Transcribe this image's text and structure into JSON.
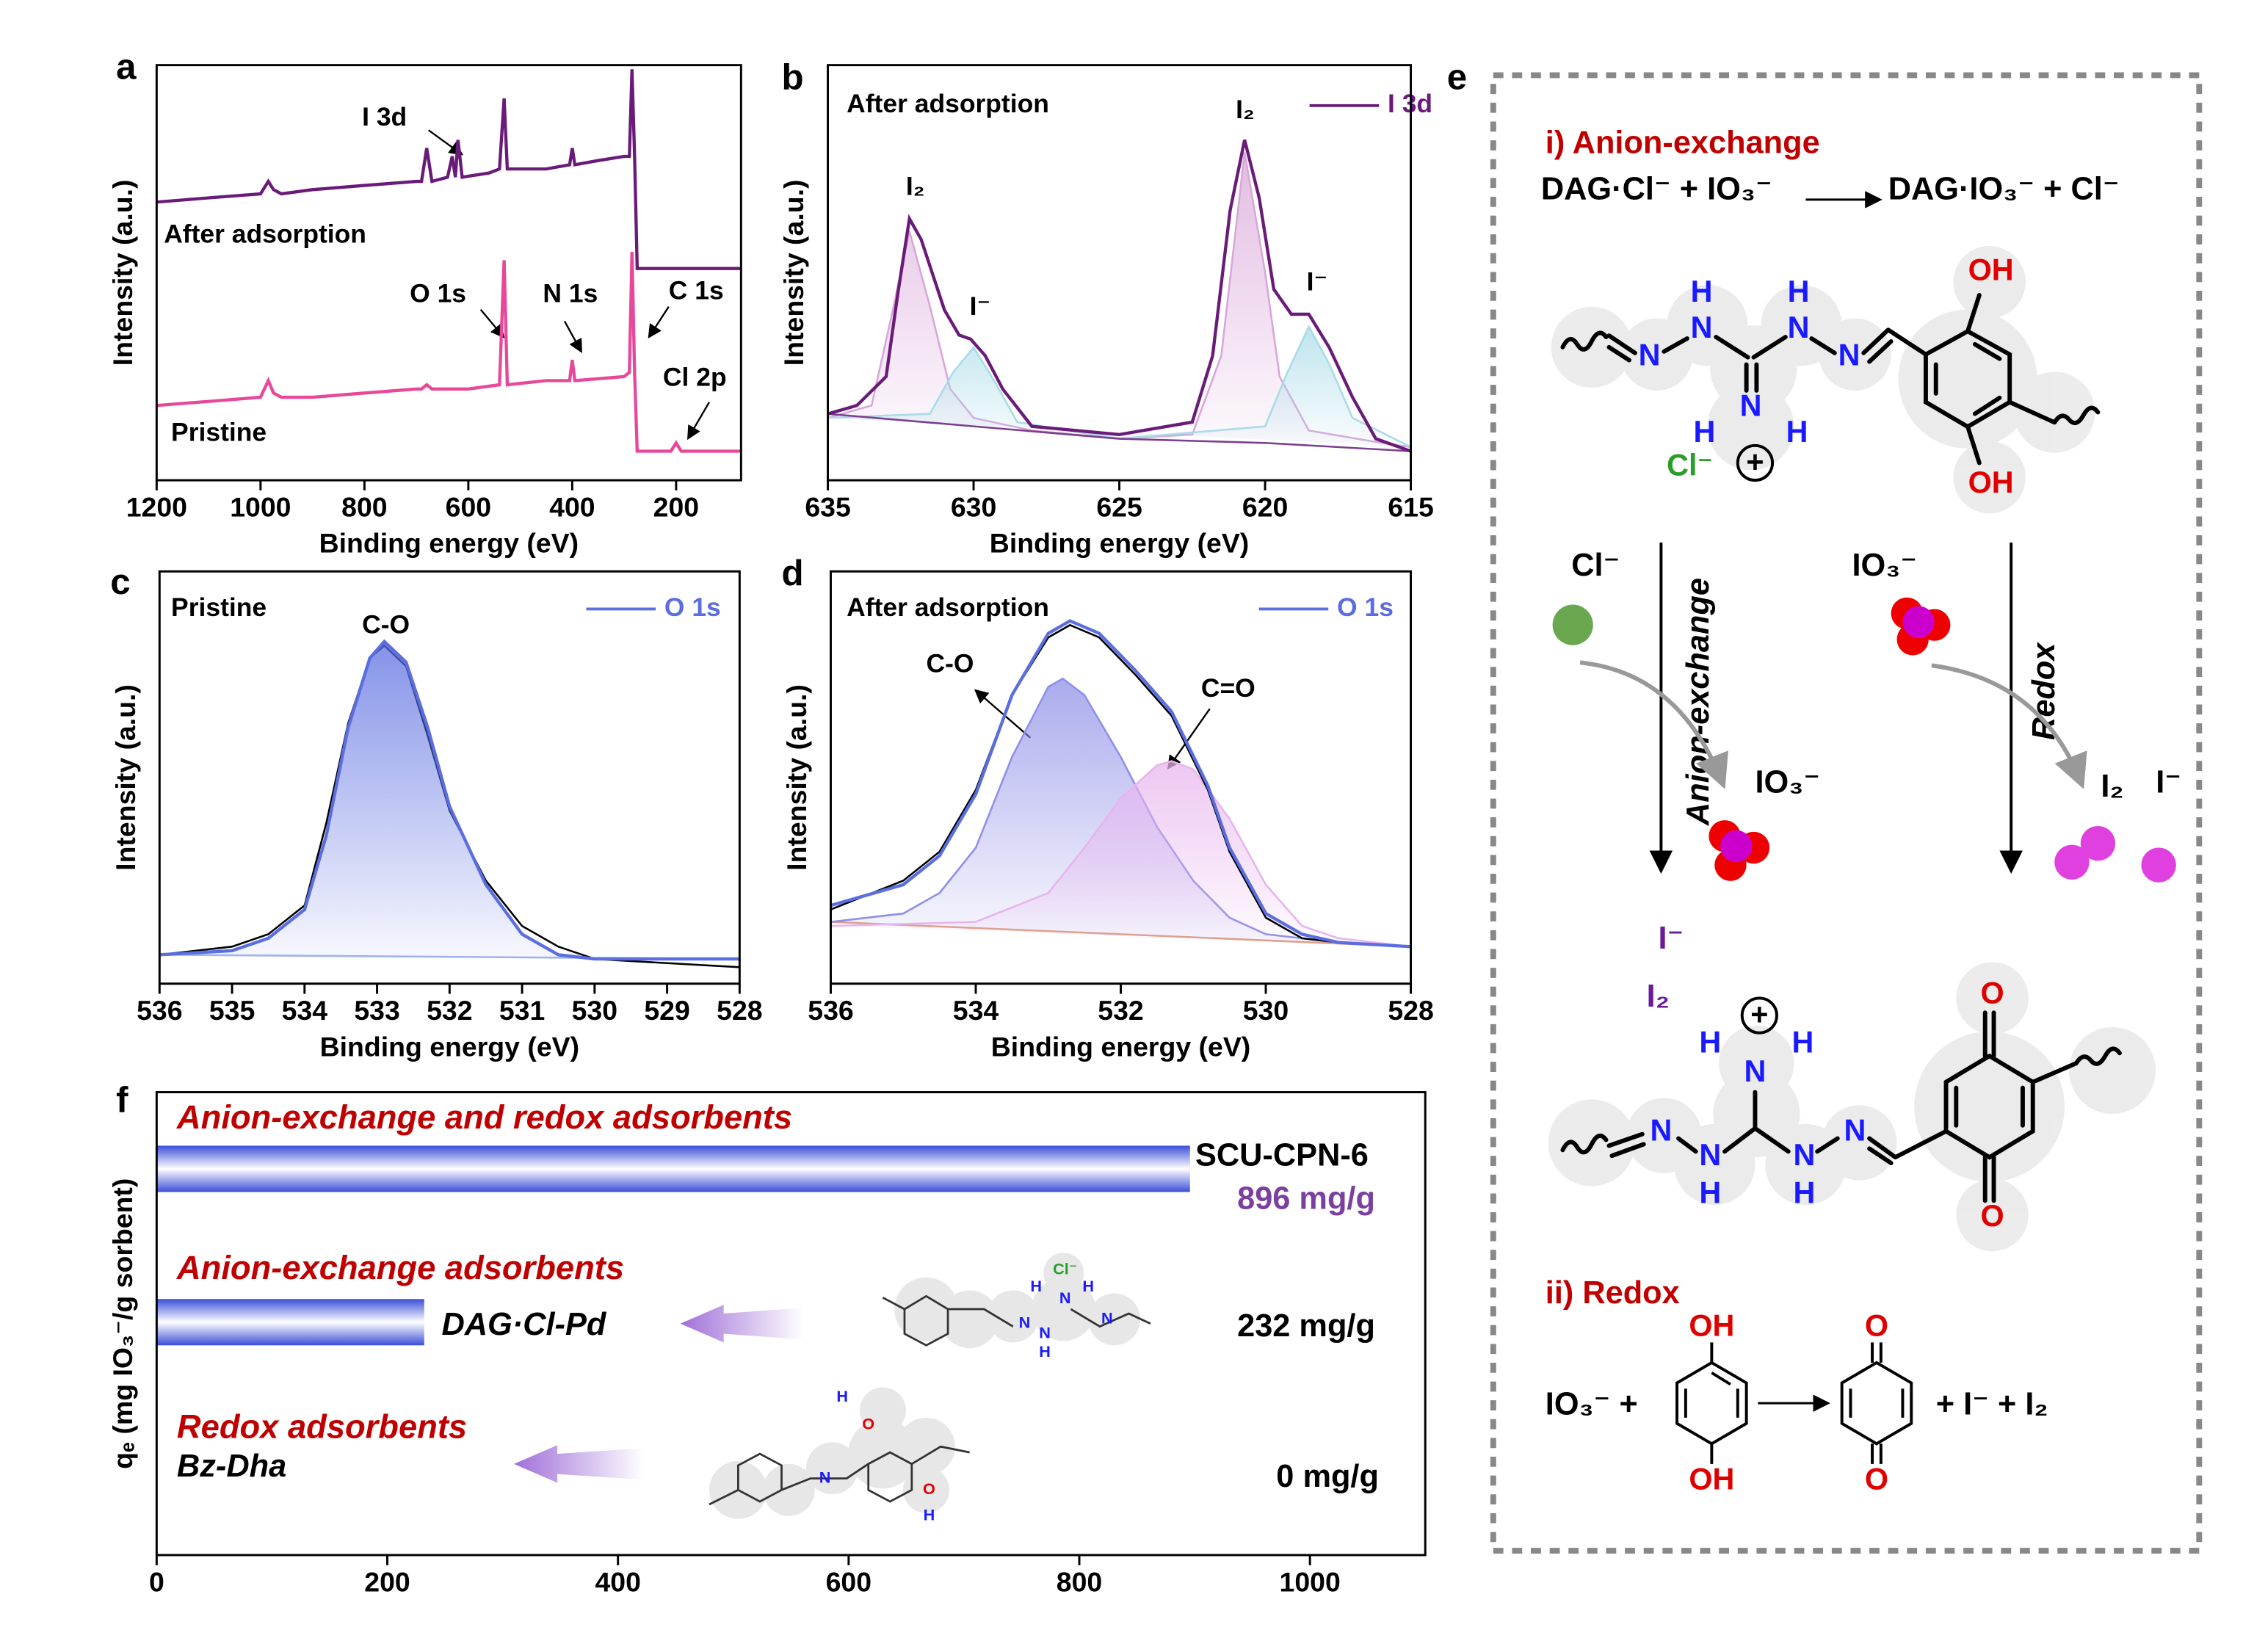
{
  "chart_data": [
    {
      "type": "line",
      "label": "a",
      "xlabel": "Binding energy (eV)",
      "ylabel": "Intensity (a.u.)",
      "xlim": [
        1200,
        75
      ],
      "xticks": [
        1200,
        1000,
        800,
        600,
        400,
        200
      ],
      "ylim": [
        0,
        100
      ],
      "legend": "inline",
      "annotations": [
        "I 3d",
        "O 1s",
        "N 1s",
        "C 1s",
        "Cl 2p"
      ],
      "series": [
        {
          "name": "After adsorption",
          "color": "#6a1b7a",
          "x": [
            1200,
            1100,
            1000,
            985,
            975,
            960,
            900,
            800,
            700,
            690,
            680,
            670,
            640,
            631,
            625,
            620,
            612,
            560,
            540,
            531,
            525,
            450,
            405,
            400,
            395,
            350,
            300,
            290,
            285,
            280,
            275,
            200,
            100,
            75
          ],
          "values": [
            67,
            68,
            69,
            72,
            70,
            69,
            70,
            71,
            72,
            72,
            80,
            72,
            73,
            78,
            73,
            82,
            73,
            74,
            75,
            92,
            75,
            75,
            76,
            80,
            76,
            77,
            78,
            78,
            99,
            78,
            51,
            51,
            51,
            51
          ]
        },
        {
          "name": "Pristine",
          "color": "#e8489a",
          "x": [
            1200,
            1100,
            1000,
            985,
            975,
            960,
            900,
            800,
            700,
            690,
            680,
            670,
            600,
            540,
            531,
            525,
            450,
            405,
            400,
            395,
            300,
            290,
            285,
            280,
            275,
            210,
            200,
            190,
            100,
            75
          ],
          "values": [
            18,
            19,
            20,
            24,
            21,
            20,
            20,
            21,
            22,
            22,
            23,
            22,
            22,
            23,
            53,
            23,
            24,
            24,
            29,
            24,
            25,
            26,
            55,
            26,
            7,
            7,
            9,
            7,
            7,
            7
          ]
        }
      ]
    },
    {
      "type": "line",
      "label": "b",
      "xlabel": "Binding energy (eV)",
      "ylabel": "Intensity (a.u.)",
      "xlim": [
        635,
        615
      ],
      "xticks": [
        635,
        630,
        625,
        620,
        615
      ],
      "ylim": [
        0,
        100
      ],
      "legend": "upper right",
      "annotations": [
        "After adsorption",
        "I₂",
        "I⁻",
        "I₂",
        "I⁻"
      ],
      "series": [
        {
          "color": "#d9a6d9",
          "fill": true,
          "x": [
            635,
            633.5,
            632.8,
            632.2,
            631.5,
            630.8,
            630,
            628,
            625,
            622.5,
            621.5,
            620.7,
            620,
            619.5,
            618.5,
            616,
            615
          ],
          "values": [
            15,
            18,
            40,
            60,
            42,
            22,
            15,
            12,
            10,
            11,
            30,
            79,
            50,
            25,
            12,
            9,
            8
          ]
        },
        {
          "color": "#a9dbe8",
          "fill": true,
          "x": [
            635,
            631.5,
            630.7,
            630,
            629.3,
            628.5,
            625,
            620,
            619.3,
            618.5,
            617.8,
            617,
            615
          ],
          "values": [
            15,
            16,
            26,
            32,
            24,
            14,
            10,
            13,
            25,
            37,
            28,
            15,
            8
          ]
        },
        {
          "color": "#7b3f8f",
          "x": [
            635,
            630,
            625,
            620,
            615
          ],
          "values": [
            16,
            13,
            10,
            9,
            7
          ]
        },
        {
          "name": "I 3d",
          "color": "#6a1b7a",
          "x": [
            635,
            634,
            633,
            632.6,
            632.2,
            631.8,
            631,
            630.5,
            630.1,
            629.6,
            629,
            628,
            625,
            622.5,
            621.8,
            621.2,
            620.7,
            620.2,
            619.7,
            619.1,
            618.5,
            617.8,
            617,
            616.2,
            615
          ],
          "values": [
            16,
            18,
            25,
            45,
            63,
            58,
            41,
            35,
            34,
            30,
            22,
            13,
            11,
            14,
            30,
            65,
            82,
            68,
            46,
            40,
            40,
            32,
            20,
            10,
            7
          ]
        }
      ]
    },
    {
      "type": "line",
      "label": "c",
      "xlabel": "Binding energy (eV)",
      "ylabel": "Intensity (a.u.)",
      "xlim": [
        536,
        528
      ],
      "xticks": [
        536,
        535,
        534,
        533,
        532,
        531,
        530,
        529,
        528
      ],
      "ylim": [
        0,
        100
      ],
      "legend": "upper right",
      "annotations": [
        "Pristine",
        "C-O"
      ],
      "series": [
        {
          "color": "#a0b4f0",
          "x": [
            536,
            528
          ],
          "values": [
            7,
            6
          ]
        },
        {
          "color": "#000000",
          "x": [
            536,
            535,
            534.5,
            534,
            533.7,
            533.4,
            533.1,
            532.9,
            532.6,
            532.3,
            532,
            531.5,
            531,
            530.5,
            530,
            529,
            528
          ],
          "values": [
            7,
            9,
            12,
            19,
            39,
            63,
            79,
            82,
            77,
            60,
            42,
            25,
            14,
            9,
            6,
            5,
            4
          ]
        },
        {
          "name": "O 1s",
          "color": "#5b6ee1",
          "fill": true,
          "x": [
            536,
            535,
            534.5,
            534,
            533.7,
            533.4,
            533.1,
            532.9,
            532.6,
            532.3,
            532,
            531.5,
            531,
            530.5,
            530,
            529,
            528
          ],
          "values": [
            7,
            8,
            11,
            18,
            36,
            62,
            79,
            83,
            78,
            62,
            43,
            24,
            12,
            7,
            6,
            6,
            6
          ]
        }
      ]
    },
    {
      "type": "line",
      "label": "d",
      "xlabel": "Binding energy (eV)",
      "ylabel": "Intensity (a.u.)",
      "xlim": [
        536,
        528
      ],
      "xticks": [
        536,
        534,
        532,
        530,
        528
      ],
      "ylim": [
        0,
        100
      ],
      "legend": "upper right",
      "annotations": [
        "After adsorption",
        "C-O",
        "C=O"
      ],
      "series": [
        {
          "color": "#e0a080",
          "x": [
            536,
            532,
            528
          ],
          "values": [
            15,
            12,
            9
          ]
        },
        {
          "color": "#8f8fe8",
          "fill": true,
          "x": [
            536,
            535,
            534.5,
            534,
            533.5,
            533,
            532.8,
            532.5,
            532,
            531.5,
            531,
            530.5,
            530,
            529,
            528
          ],
          "values": [
            15,
            17,
            22,
            33,
            55,
            72,
            74,
            70,
            55,
            38,
            25,
            16,
            12,
            10,
            9
          ]
        },
        {
          "color": "#e8b4ee",
          "fill": true,
          "x": [
            536,
            534,
            533,
            532.5,
            532,
            531.5,
            531.3,
            531,
            530.5,
            530,
            529.5,
            529,
            528
          ],
          "values": [
            14,
            15,
            22,
            33,
            45,
            53,
            54,
            52,
            40,
            24,
            14,
            11,
            9
          ]
        },
        {
          "color": "#000000",
          "x": [
            536,
            535,
            534.5,
            534,
            533.5,
            533,
            532.7,
            532.3,
            531.8,
            531.3,
            530.8,
            530.5,
            530,
            529.5,
            529,
            528
          ],
          "values": [
            18,
            25,
            32,
            47,
            70,
            84,
            87,
            84,
            75,
            65,
            47,
            32,
            16,
            11,
            10,
            9
          ]
        },
        {
          "name": "O 1s",
          "color": "#5b6ee1",
          "x": [
            536,
            535,
            534.5,
            534,
            533.5,
            533,
            532.7,
            532.3,
            531.8,
            531.3,
            530.8,
            530.5,
            530,
            529.5,
            529,
            528
          ],
          "values": [
            19,
            24,
            31,
            46,
            70,
            85,
            88,
            85,
            76,
            66,
            48,
            33,
            17,
            12,
            10,
            9
          ]
        }
      ]
    },
    {
      "type": "bar",
      "label": "f",
      "ylabel": "qₑ (mg IO₃⁻/g sorbent)",
      "xlim": [
        0,
        1100
      ],
      "xticks": [
        0,
        200,
        400,
        600,
        800,
        1000
      ],
      "color": "#3b4fd8",
      "groups": [
        "Anion-exchange and redox adsorbents",
        "Anion-exchange adsorbents",
        "Redox adsorbents"
      ],
      "group_color": "#c00000",
      "categories": [
        "SCU-CPN-6",
        "DAG·Cl-Pd",
        "Bz-Dha"
      ],
      "values": [
        896,
        232,
        0
      ],
      "value_labels": [
        "896 mg/g",
        "232 mg/g",
        "0 mg/g"
      ],
      "value_label_colors": [
        "#7b3fa0",
        "#000000",
        "#000000"
      ]
    }
  ],
  "panel_f_structures": {
    "dag_cl_pd": [
      "Cl⁻",
      "H",
      "N",
      "H",
      "N",
      "N",
      "H",
      "N"
    ],
    "bz_dha": [
      "N",
      "O",
      "H",
      "O",
      "H"
    ]
  },
  "panel_e": {
    "label": "e",
    "title_1": "i) Anion-exchange",
    "eq_1_left": "DAG·Cl⁻ + IO₃⁻",
    "eq_1_right": "DAG·IO₃⁻ + Cl⁻",
    "mol_1": [
      "N",
      "H",
      "N",
      "H",
      "N",
      "N",
      "N",
      "H",
      "H",
      "OH",
      "OH",
      "Cl⁻",
      "+"
    ],
    "ion_left": "Cl⁻",
    "ion_right": "IO₃⁻",
    "arrow_left": "Anion-exchange",
    "arrow_right": "Redox",
    "product_left": "IO₃⁻",
    "product_right_1": "I₂",
    "product_right_2": "I⁻",
    "released_1": "I⁻",
    "released_2": "I₂",
    "mol_2": [
      "+",
      "H",
      "N",
      "H",
      "N",
      "N",
      "H",
      "N",
      "H",
      "N",
      "O",
      "O"
    ],
    "title_2": "ii) Redox",
    "eq_2_left": "IO₃⁻ +",
    "eq_2_right": "+  I⁻  +  I₂",
    "eq_2_mol_1": [
      "OH",
      "OH"
    ],
    "eq_2_mol_2": [
      "O",
      "O"
    ]
  }
}
